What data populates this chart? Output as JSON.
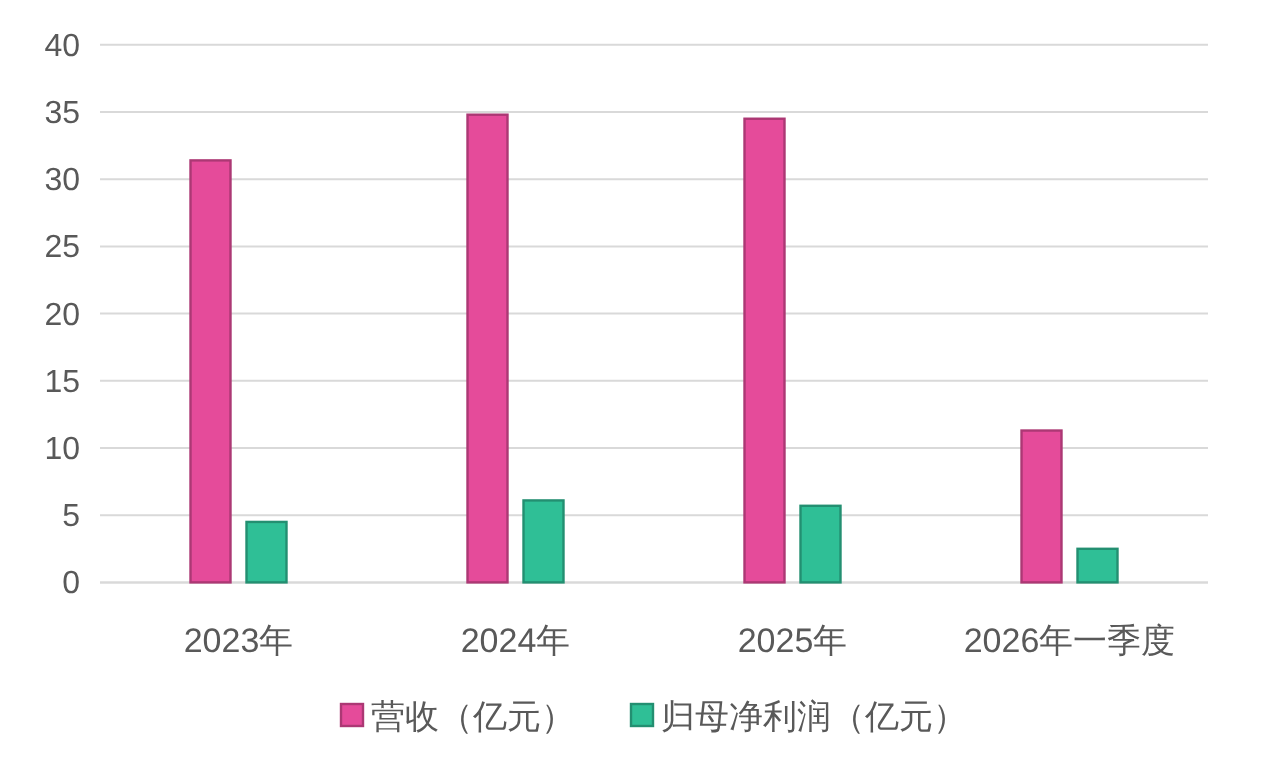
{
  "chart_data": {
    "type": "bar",
    "categories": [
      "2023年",
      "2024年",
      "2025年",
      "2026年一季度"
    ],
    "series": [
      {
        "name": "营收（亿元）",
        "color": "#e54b9a",
        "values": [
          31.4,
          34.8,
          34.5,
          11.3
        ]
      },
      {
        "name": "归母净利润（亿元）",
        "color": "#2fbf96",
        "values": [
          4.5,
          6.1,
          5.7,
          2.5
        ]
      }
    ],
    "ylim": [
      0,
      40
    ],
    "yticks": [
      0,
      5,
      10,
      15,
      20,
      25,
      30,
      35,
      40
    ],
    "grid": "y",
    "legend": "bottom"
  }
}
